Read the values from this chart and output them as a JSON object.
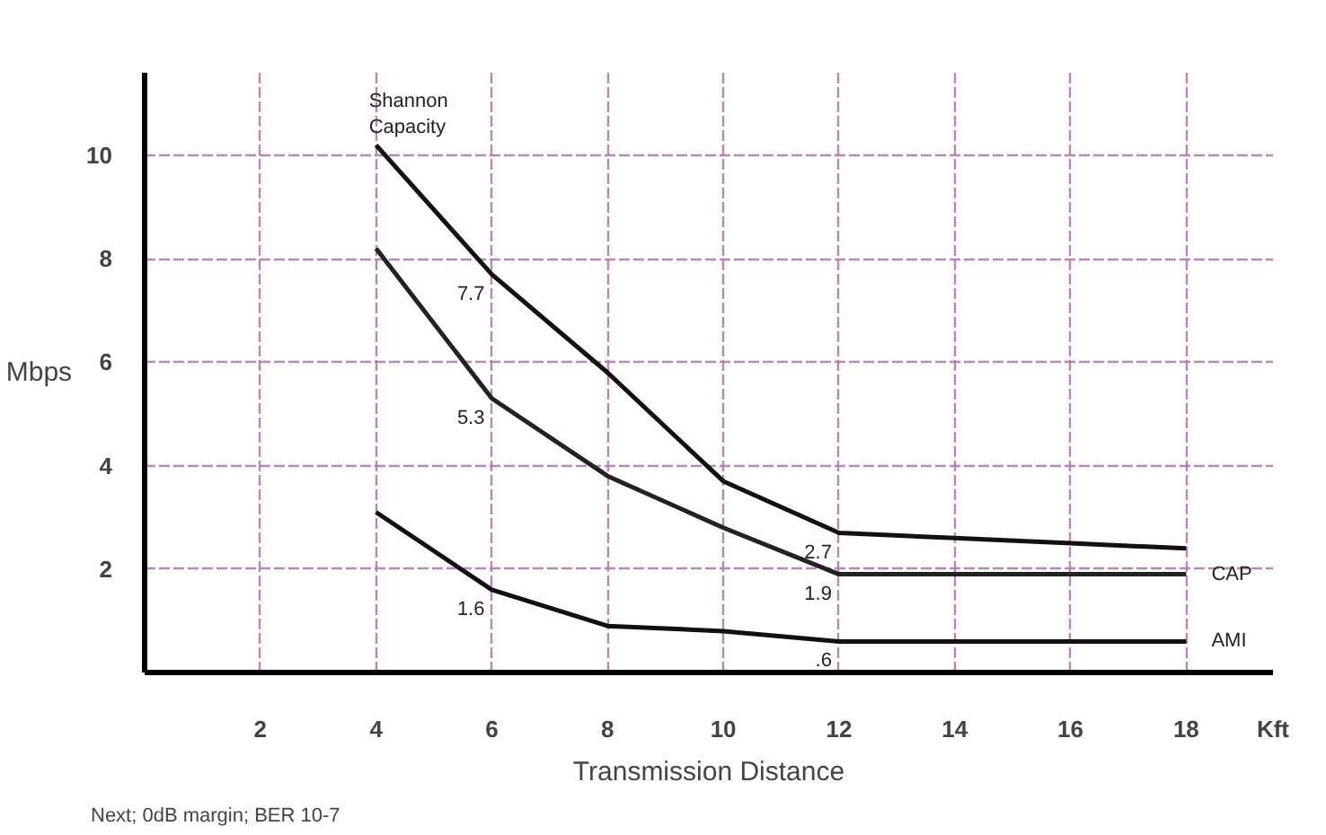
{
  "chart_data": {
    "type": "line",
    "xlabel": "Transmission Distance",
    "ylabel": "Mbps",
    "x": [
      4,
      6,
      8,
      10,
      12,
      14,
      16,
      18
    ],
    "series": [
      {
        "name": "Shannon Capacity",
        "color": "#111111",
        "values": [
          10.2,
          7.7,
          5.8,
          3.7,
          2.7,
          2.6,
          2.5,
          2.4
        ],
        "value_labels": [
          null,
          "7.7",
          null,
          null,
          "2.7",
          null,
          null,
          null
        ]
      },
      {
        "name": "CAP",
        "color": "#222222",
        "values": [
          8.2,
          5.3,
          3.8,
          2.8,
          1.9,
          1.9,
          1.9,
          1.9
        ],
        "value_labels": [
          null,
          "5.3",
          null,
          null,
          "1.9",
          null,
          null,
          null
        ]
      },
      {
        "name": "AMI",
        "color": "#111111",
        "values": [
          3.1,
          1.6,
          0.9,
          0.8,
          0.6,
          0.6,
          0.6,
          0.6
        ],
        "value_labels": [
          null,
          "1.6",
          null,
          null,
          ".6",
          null,
          null,
          null
        ]
      }
    ],
    "xlim": [
      0,
      19.5
    ],
    "ylim": [
      0,
      11.6
    ],
    "xticks": [
      2,
      4,
      6,
      8,
      10,
      12,
      14,
      16,
      18,
      {
        "value": 19.5,
        "label": "Kft"
      }
    ],
    "yticks": [
      2,
      4,
      6,
      8,
      10
    ],
    "grid": true,
    "annotations": [
      "Next; 0dB margin; BER 10-7"
    ]
  }
}
